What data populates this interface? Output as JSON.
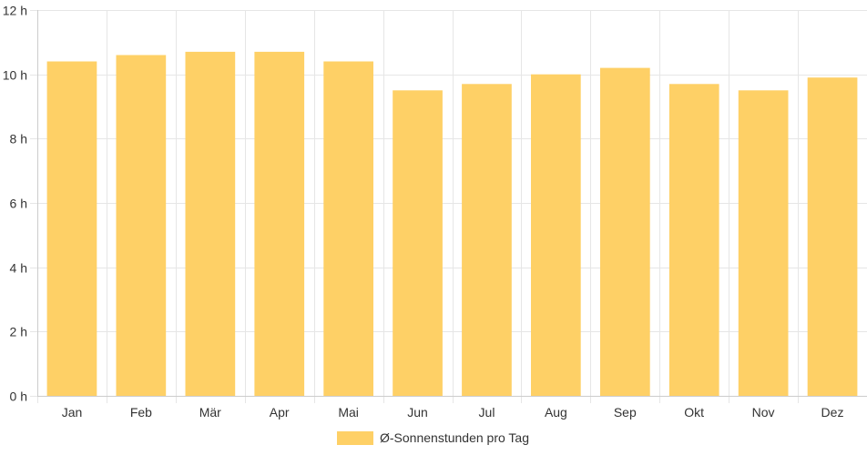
{
  "chart_data": {
    "type": "bar",
    "categories": [
      "Jan",
      "Feb",
      "Mär",
      "Apr",
      "Mai",
      "Jun",
      "Jul",
      "Aug",
      "Sep",
      "Okt",
      "Nov",
      "Dez"
    ],
    "series": [
      {
        "name": "Ø-Sonnenstunden pro Tag",
        "values": [
          10.4,
          10.6,
          10.7,
          10.7,
          10.4,
          9.5,
          9.7,
          10.0,
          10.2,
          9.7,
          9.5,
          9.9
        ],
        "color": "#FED066"
      }
    ],
    "title": "",
    "xlabel": "",
    "ylabel": "",
    "ylim": [
      0,
      12
    ],
    "yticks": [
      {
        "value": 0,
        "label": "0 h"
      },
      {
        "value": 2,
        "label": "2 h"
      },
      {
        "value": 4,
        "label": "4 h"
      },
      {
        "value": 6,
        "label": "6 h"
      },
      {
        "value": 8,
        "label": "8 h"
      },
      {
        "value": 10,
        "label": "10 h"
      },
      {
        "value": 12,
        "label": "12 h"
      }
    ],
    "grid": true,
    "legend_position": "bottom"
  },
  "legend": {
    "label": "Ø-Sonnenstunden pro Tag",
    "color": "#FED066"
  },
  "colors": {
    "grid": "#e6e6e6",
    "axis": "#cccccc",
    "text": "#333333"
  }
}
